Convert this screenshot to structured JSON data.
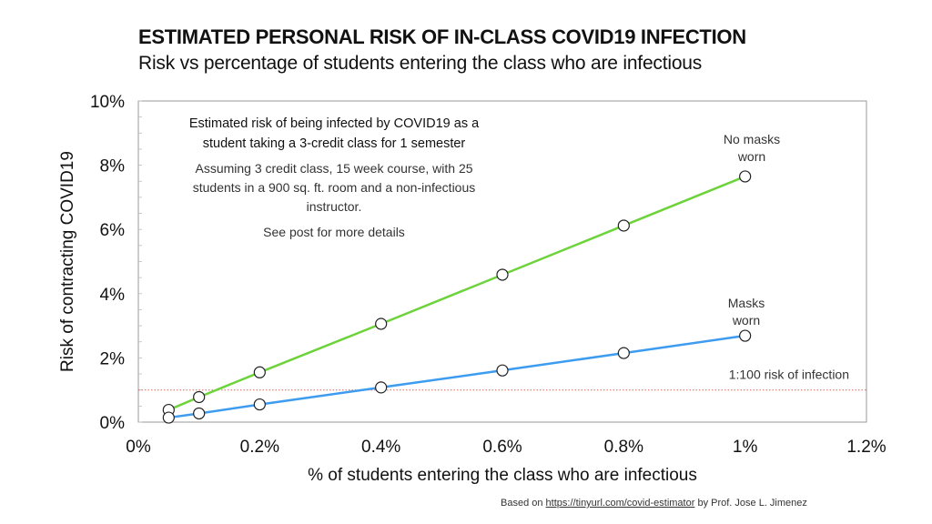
{
  "header": {
    "title": "ESTIMATED PERSONAL RISK OF IN-CLASS COVID19 INFECTION",
    "subtitle": "Risk vs percentage of students entering the class who are infectious"
  },
  "chart_data": {
    "type": "line",
    "title": "ESTIMATED PERSONAL RISK OF IN-CLASS COVID19 INFECTION",
    "subtitle": "Risk vs percentage of students entering the class who are infectious",
    "xlabel": "% of students entering the class who are infectious",
    "ylabel": "Risk of contracting COVID19",
    "xlim": [
      0,
      1.2
    ],
    "ylim": [
      0,
      10
    ],
    "xticks": [
      0,
      0.2,
      0.4,
      0.6,
      0.8,
      1,
      1.2
    ],
    "xtick_labels": [
      "0%",
      "0.2%",
      "0.4%",
      "0.6%",
      "0.8%",
      "1%",
      "1.2%"
    ],
    "yticks": [
      0,
      2,
      4,
      6,
      8,
      10
    ],
    "ytick_labels": [
      "0%",
      "2%",
      "4%",
      "6%",
      "8%",
      "10%"
    ],
    "grid": false,
    "x": [
      0.05,
      0.1,
      0.2,
      0.4,
      0.6,
      0.8,
      1.0
    ],
    "series": [
      {
        "name": "No masks worn",
        "label_lines": [
          "No masks",
          "worn"
        ],
        "color": "#6cd33a",
        "values": [
          0.38,
          0.78,
          1.55,
          3.06,
          4.59,
          6.12,
          7.65
        ]
      },
      {
        "name": "Masks worn",
        "label_lines": [
          "Masks",
          "worn"
        ],
        "color": "#3d9cf0",
        "values": [
          0.14,
          0.27,
          0.55,
          1.08,
          1.61,
          2.15,
          2.69
        ]
      }
    ],
    "reference_line": {
      "y": 1,
      "label": "1:100 risk of infection",
      "color": "#e0665a"
    },
    "annotation": {
      "heading_lines": [
        "Estimated risk of being infected by COVID19 as a",
        "student taking a 3-credit class for 1 semester"
      ],
      "body_lines": [
        "Assuming 3 credit class, 15 week course, with 25",
        "students in a 900 sq. ft. room and a non-infectious",
        "instructor."
      ],
      "note": "See post for more details"
    }
  },
  "footer": {
    "prefix": "Based on ",
    "link_text": "https://tinyurl.com/covid-estimator",
    "suffix": " by Prof. Jose L. Jimenez"
  }
}
